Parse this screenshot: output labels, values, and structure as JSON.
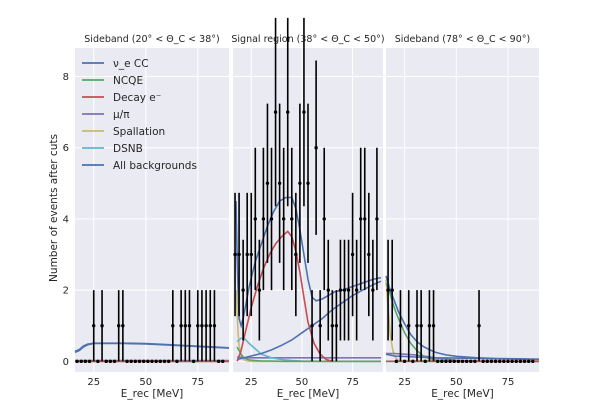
{
  "colors": {
    "nue_cc": "#4c72b0",
    "ncqe": "#55a868",
    "decay_e": "#c44e52",
    "mu_pi": "#8172b2",
    "spallation": "#ccb974",
    "dsnb": "#64b5cd",
    "all_bkg": "#4c72b0",
    "data": "#000000"
  },
  "chart_data": {
    "type": "line",
    "ylabel": "Number of events after cuts",
    "legend": {
      "placement": "upper-left",
      "entries": [
        {
          "key": "nue_cc",
          "label": "ν_e CC"
        },
        {
          "key": "ncqe",
          "label": "NCQE"
        },
        {
          "key": "decay_e",
          "label": "Decay e⁻"
        },
        {
          "key": "mu_pi",
          "label": "μ/π"
        },
        {
          "key": "spallation",
          "label": "Spallation"
        },
        {
          "key": "dsnb",
          "label": "DSNB"
        },
        {
          "key": "all_bkg",
          "label": "All backgrounds"
        }
      ]
    },
    "panels": [
      {
        "title": "Sideband (20° < Θ_C < 38°)",
        "xlabel": "E_rec [MeV]",
        "xlim": [
          16,
          90
        ],
        "ylim": [
          -0.3,
          8.8
        ],
        "xticks": [
          25,
          50,
          75
        ],
        "yticks": [
          0,
          2,
          4,
          6,
          8
        ],
        "grid": true,
        "data_x": [
          17,
          19,
          21,
          23,
          25,
          27,
          29,
          31,
          33,
          35,
          37,
          39,
          41,
          43,
          45,
          47,
          49,
          51,
          53,
          55,
          57,
          59,
          61,
          63,
          65,
          67,
          69,
          71,
          73,
          75,
          77,
          79,
          81,
          83,
          85,
          87
        ],
        "data_y": [
          0,
          0,
          0,
          0,
          1,
          0,
          1,
          0,
          0,
          0,
          1,
          1,
          0,
          0,
          0,
          0,
          0,
          0,
          0,
          0,
          0,
          0,
          0,
          1,
          0,
          1,
          1,
          1,
          0,
          1,
          1,
          1,
          1,
          1,
          0,
          0
        ],
        "series": {
          "nue_cc": {
            "x": [
              16,
              18,
              20,
              22,
              25,
              30,
              40,
              50,
              60,
              70,
              80,
              90
            ],
            "y": [
              0.25,
              0.3,
              0.4,
              0.46,
              0.5,
              0.5,
              0.5,
              0.49,
              0.46,
              0.43,
              0.4,
              0.37
            ]
          },
          "all_bkg": {
            "x": [
              16,
              18,
              20,
              22,
              25,
              30,
              40,
              50,
              60,
              70,
              80,
              90
            ],
            "y": [
              0.28,
              0.33,
              0.43,
              0.48,
              0.51,
              0.51,
              0.51,
              0.5,
              0.47,
              0.44,
              0.41,
              0.38
            ]
          },
          "mu_pi": {
            "x": [
              16,
              90
            ],
            "y": [
              0.02,
              0.02
            ]
          },
          "spallation": {
            "x": [
              16,
              90
            ],
            "y": [
              0.0,
              0.0
            ]
          },
          "ncqe": {
            "x": [
              16,
              90
            ],
            "y": [
              0.0,
              0.0
            ]
          },
          "decay_e": {
            "x": [
              16,
              90
            ],
            "y": [
              0.0,
              0.0
            ]
          },
          "dsnb": {
            "x": [
              16,
              90
            ],
            "y": [
              0.0,
              0.0
            ]
          }
        }
      },
      {
        "title": "Signal region (38° < Θ_C < 50°)",
        "xlabel": "E_rec [MeV]",
        "xlim": [
          16,
          90
        ],
        "ylim": [
          -0.3,
          8.8
        ],
        "xticks": [
          25,
          50,
          75
        ],
        "yticks": [
          0,
          2,
          4,
          6,
          8
        ],
        "grid": true,
        "data_x": [
          17,
          19,
          21,
          23,
          25,
          27,
          29,
          31,
          33,
          35,
          37,
          39,
          41,
          43,
          45,
          47,
          49,
          51,
          53,
          55,
          57,
          59,
          61,
          63,
          65,
          67,
          69,
          71,
          73,
          75,
          77,
          79,
          81,
          83,
          85,
          87
        ],
        "data_y": [
          3,
          3,
          2,
          3,
          3,
          4,
          2,
          4,
          5,
          4,
          7,
          5,
          4,
          7,
          4,
          3,
          5,
          7,
          5,
          1,
          6,
          1,
          4,
          2,
          1,
          1,
          2,
          2,
          2,
          3,
          2,
          4,
          4,
          3,
          2,
          4
        ],
        "series": {
          "nue_cc": {
            "x": [
              18,
              20,
              25,
              30,
              35,
              40,
              45,
              50,
              55,
              60,
              65,
              70,
              75,
              80,
              85,
              89
            ],
            "y": [
              0.05,
              0.08,
              0.15,
              0.22,
              0.32,
              0.45,
              0.6,
              0.8,
              1.0,
              1.2,
              1.45,
              1.65,
              1.85,
              2.0,
              2.15,
              2.25
            ]
          },
          "ncqe": {
            "x": [
              18,
              19,
              20,
              21,
              22,
              24,
              27,
              30,
              35,
              40,
              50,
              60,
              70,
              89
            ],
            "y": [
              0.4,
              0.3,
              0.2,
              0.12,
              0.08,
              0.04,
              0.02,
              0.01,
              0.01,
              0.0,
              0.0,
              0.0,
              0.0,
              0.0
            ]
          },
          "decay_e": {
            "x": [
              18,
              20,
              22,
              25,
              28,
              31,
              34,
              37,
              40,
              43,
              45,
              47,
              49,
              51,
              53,
              56,
              59,
              62,
              65
            ],
            "y": [
              0.0,
              0.3,
              0.8,
              1.5,
              2.1,
              2.6,
              3.0,
              3.3,
              3.5,
              3.65,
              3.5,
              3.1,
              2.5,
              1.8,
              1.1,
              0.5,
              0.2,
              0.05,
              0.0
            ]
          },
          "mu_pi": {
            "x": [
              18,
              22,
              30,
              40,
              50,
              60,
              70,
              80,
              89
            ],
            "y": [
              0.12,
              0.1,
              0.1,
              0.1,
              0.1,
              0.1,
              0.1,
              0.1,
              0.1
            ]
          },
          "spallation": {
            "x": [
              17.5,
              18,
              18.5,
              19,
              20,
              21,
              23,
              25,
              30,
              40,
              89
            ],
            "y": [
              2.0,
              1.4,
              0.8,
              0.45,
              0.15,
              0.05,
              0.01,
              0.0,
              0.0,
              0.0,
              0.0
            ]
          },
          "dsnb": {
            "x": [
              18,
              20,
              22,
              24,
              26,
              28,
              30,
              35,
              40,
              45,
              50,
              60,
              70,
              89
            ],
            "y": [
              0.55,
              0.65,
              0.62,
              0.5,
              0.4,
              0.3,
              0.2,
              0.1,
              0.05,
              0.02,
              0.01,
              0.0,
              0.0,
              0.0
            ]
          },
          "all_bkg": {
            "x": [
              17.5,
              18,
              18.5,
              19,
              20,
              21,
              22,
              24,
              27,
              30,
              33,
              36,
              39,
              42,
              45,
              47,
              49,
              51,
              53,
              55,
              57,
              60,
              63,
              66,
              70,
              75,
              80,
              85,
              89
            ],
            "y": [
              4.5,
              3.0,
              2.0,
              1.2,
              1.0,
              1.2,
              1.5,
              2.1,
              2.8,
              3.3,
              3.8,
              4.2,
              4.5,
              4.6,
              4.6,
              4.3,
              3.7,
              3.0,
              2.3,
              1.8,
              1.7,
              1.75,
              1.85,
              1.95,
              2.0,
              2.1,
              2.2,
              2.3,
              2.35
            ]
          }
        }
      },
      {
        "title": "Sideband (78° < Θ_C < 90°)",
        "xlabel": "E_rec [MeV]",
        "xlim": [
          16,
          90
        ],
        "ylim": [
          -0.3,
          8.8
        ],
        "xticks": [
          25,
          50,
          75
        ],
        "yticks": [
          0,
          2,
          4,
          6,
          8
        ],
        "grid": true,
        "data_x": [
          17,
          19,
          21,
          23,
          25,
          27,
          29,
          31,
          33,
          35,
          37,
          39,
          41,
          43,
          45,
          47,
          49,
          51,
          53,
          55,
          57,
          59,
          61,
          63,
          65,
          67,
          69,
          71,
          73,
          75,
          77,
          79,
          81,
          83,
          85,
          87
        ],
        "data_y": [
          2,
          2,
          0,
          1,
          0,
          1,
          0,
          1,
          1,
          0,
          1,
          1,
          0,
          0,
          0,
          0,
          0,
          0,
          0,
          0,
          0,
          0,
          1,
          0,
          0,
          0,
          0,
          0,
          0,
          0,
          0,
          0,
          0,
          0,
          0,
          0
        ],
        "series": {
          "nue_cc": {
            "x": [
              16,
              20,
              30,
              40,
              50,
              60,
              70,
              80,
              90
            ],
            "y": [
              0.2,
              0.15,
              0.12,
              0.1,
              0.09,
              0.08,
              0.07,
              0.06,
              0.05
            ]
          },
          "ncqe": {
            "x": [
              16,
              18,
              20,
              22,
              25,
              28,
              31,
              34,
              37,
              40,
              45,
              50,
              90
            ],
            "y": [
              2.2,
              1.9,
              1.5,
              1.2,
              0.8,
              0.5,
              0.3,
              0.15,
              0.08,
              0.04,
              0.01,
              0.0,
              0.0
            ]
          },
          "decay_e": {
            "x": [
              16,
              90
            ],
            "y": [
              0.0,
              0.0
            ]
          },
          "mu_pi": {
            "x": [
              16,
              20,
              25,
              30,
              35,
              40,
              45,
              50,
              60,
              70,
              90
            ],
            "y": [
              0.22,
              0.22,
              0.2,
              0.18,
              0.14,
              0.1,
              0.06,
              0.03,
              0.01,
              0.0,
              0.0
            ]
          },
          "spallation": {
            "x": [
              16,
              17,
              18,
              19,
              20,
              22,
              90
            ],
            "y": [
              2.3,
              1.5,
              0.8,
              0.4,
              0.15,
              0.02,
              0.0
            ]
          },
          "dsnb": {
            "x": [
              16,
              90
            ],
            "y": [
              0.0,
              0.0
            ]
          },
          "all_bkg": {
            "x": [
              16,
              17,
              18,
              20,
              22,
              25,
              28,
              31,
              34,
              37,
              40,
              45,
              50,
              60,
              70,
              80,
              90
            ],
            "y": [
              2.4,
              2.2,
              2.0,
              1.7,
              1.4,
              1.05,
              0.75,
              0.55,
              0.42,
              0.33,
              0.25,
              0.18,
              0.14,
              0.1,
              0.08,
              0.07,
              0.06
            ]
          }
        }
      }
    ]
  }
}
